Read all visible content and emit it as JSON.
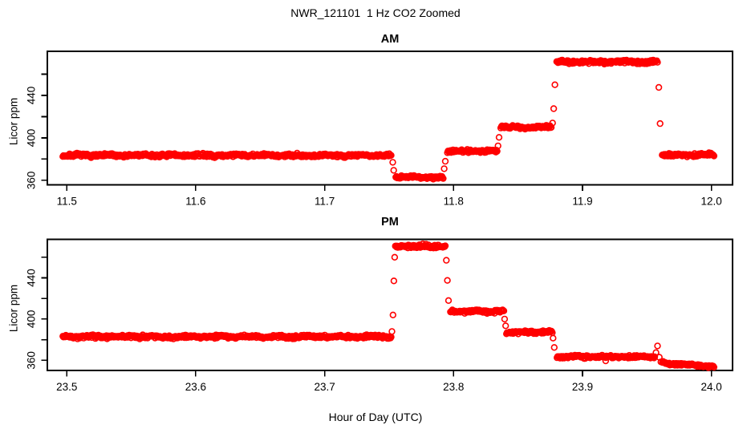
{
  "figure": {
    "title": "NWR_121101  1 Hz CO2 Zoomed",
    "xlabel": "Hour of Day (UTC)",
    "background": "#ffffff",
    "axis_color": "#000000",
    "marker_color": "#ff0000"
  },
  "chart_data": [
    {
      "type": "scatter",
      "panel": "AM",
      "title": "AM",
      "ylabel": "Licor ppm",
      "marker": "open-circle",
      "color": "#ff0000",
      "xlim": [
        11.4849,
        12.0164
      ],
      "ylim": [
        355.8,
        481.5
      ],
      "xticks": [
        11.5,
        11.6,
        11.7,
        11.8,
        11.9,
        12.0
      ],
      "xtick_labels": [
        "11.5",
        "11.6",
        "11.7",
        "11.8",
        "11.9",
        "12.0"
      ],
      "yticks": [
        360,
        380,
        400,
        420,
        440,
        460
      ],
      "ytick_labels": [
        "360",
        null,
        "400",
        null,
        "440",
        null
      ],
      "segments": [
        {
          "x0": 11.4969,
          "x1": 11.7516,
          "level": 383.5,
          "noise": 1.0
        },
        {
          "x0": 11.7552,
          "x1": 11.792,
          "level": 363.0,
          "noise": 0.9
        },
        {
          "x0": 11.7952,
          "x1": 11.8338,
          "level": 387.5,
          "noise": 0.9
        },
        {
          "x0": 11.8366,
          "x1": 11.8758,
          "level": 410.0,
          "noise": 0.9
        },
        {
          "x0": 11.88,
          "x1": 11.9582,
          "level": 471.5,
          "noise": 1.1
        },
        {
          "x0": 11.9618,
          "x1": 12.002,
          "level": 384.0,
          "noise": 0.9
        }
      ],
      "transition_points": [
        [
          11.7528,
          377.0
        ],
        [
          11.7536,
          369.5
        ],
        [
          11.7927,
          371.0
        ],
        [
          11.7936,
          378.0
        ],
        [
          11.8345,
          392.5
        ],
        [
          11.8353,
          400.5
        ],
        [
          11.8768,
          414.0
        ],
        [
          11.8777,
          427.5
        ],
        [
          11.8786,
          450.0
        ],
        [
          11.9592,
          447.5
        ],
        [
          11.9602,
          413.5
        ]
      ]
    },
    {
      "type": "scatter",
      "panel": "PM",
      "title": "PM",
      "ylabel": "Licor ppm",
      "marker": "open-circle",
      "color": "#ff0000",
      "xlim": [
        23.4849,
        24.0164
      ],
      "ylim": [
        350.2,
        477.3
      ],
      "xticks": [
        23.5,
        23.6,
        23.7,
        23.8,
        23.9,
        24.0
      ],
      "xtick_labels": [
        "23.5",
        "23.6",
        "23.7",
        "23.8",
        "23.9",
        "24.0"
      ],
      "yticks": [
        360,
        380,
        400,
        420,
        440,
        460
      ],
      "ytick_labels": [
        "360",
        null,
        "400",
        null,
        "440",
        null
      ],
      "segments": [
        {
          "x0": 23.4969,
          "x1": 23.7516,
          "level": 383.0,
          "noise": 1.0
        },
        {
          "x0": 23.7548,
          "x1": 23.7936,
          "level": 470.5,
          "noise": 1.1
        },
        {
          "x0": 23.7976,
          "x1": 23.839,
          "level": 407.5,
          "noise": 0.9
        },
        {
          "x0": 23.841,
          "x1": 23.8766,
          "level": 387.5,
          "noise": 0.9
        },
        {
          "x0": 23.8802,
          "x1": 23.956,
          "level": 363.5,
          "noise": 0.9
        },
        {
          "x0": 23.962,
          "x1": 24.002,
          "level": 357.5,
          "level_end": 354.0,
          "noise": 0.8
        }
      ],
      "transition_points": [
        [
          23.7522,
          388.0
        ],
        [
          23.753,
          404.0
        ],
        [
          23.7537,
          437.0
        ],
        [
          23.7543,
          460.0
        ],
        [
          23.7944,
          457.0
        ],
        [
          23.7952,
          437.5
        ],
        [
          23.7961,
          418.0
        ],
        [
          23.8396,
          400.0
        ],
        [
          23.8404,
          393.5
        ],
        [
          23.8772,
          381.5
        ],
        [
          23.8781,
          372.5
        ],
        [
          23.918,
          359.5
        ],
        [
          23.957,
          367.5
        ],
        [
          23.9582,
          374.0
        ],
        [
          23.9596,
          363.0
        ],
        [
          23.9608,
          358.5
        ]
      ]
    }
  ]
}
